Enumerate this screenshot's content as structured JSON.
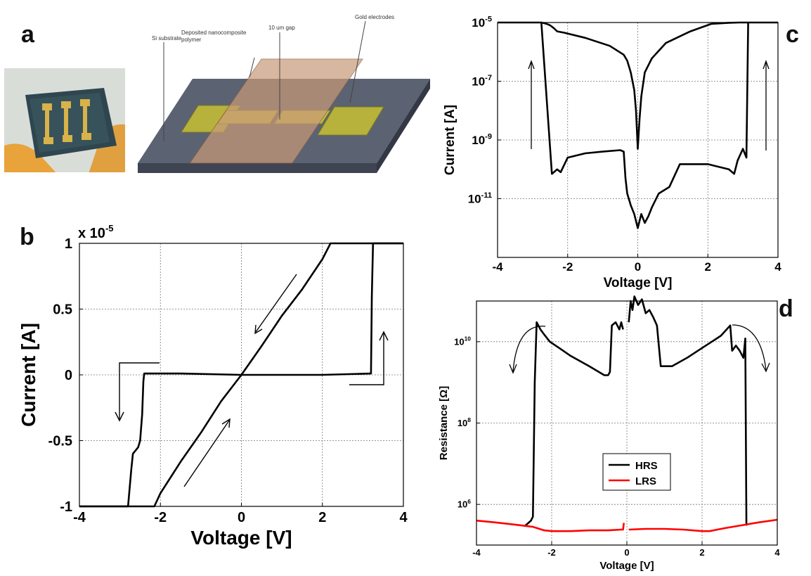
{
  "panels": {
    "a": {
      "letter": "a",
      "labels": {
        "substrate": "Si substrate",
        "polymer_line1": "Deposited nanocomposite",
        "polymer_line2": "polymer",
        "gap": "10 um gap",
        "electrodes": "Gold electrodes"
      },
      "colors": {
        "substrate": "#5b6272",
        "electrode": "#b7b23c",
        "polymer": "#c89a78"
      }
    },
    "b": {
      "letter": "b"
    },
    "c": {
      "letter": "c"
    },
    "d": {
      "letter": "d"
    }
  },
  "chart_data": [
    {
      "panel": "b",
      "type": "line",
      "xlabel": "Voltage [V]",
      "ylabel": "Current [A]",
      "multiplier_label": "x 10",
      "multiplier_exp": "-5",
      "xlim": [
        -4,
        4
      ],
      "ylim": [
        -1,
        1
      ],
      "xticks": [
        -4,
        -2,
        0,
        2,
        4
      ],
      "yticks": [
        -1,
        -0.5,
        0,
        0.5,
        1
      ],
      "ytick_labels": [
        "-1",
        "-0.5",
        "0",
        "0.5",
        "1"
      ],
      "grid": true,
      "series": [
        {
          "color": "#000000",
          "x": [
            -4,
            -2.8,
            -2.72,
            -2.68,
            -2.55,
            -2.5,
            -2.45,
            -2.42,
            -2.4,
            -1.5,
            0,
            1,
            2,
            3.2,
            3.22,
            3.25,
            4
          ],
          "y": [
            -1,
            -1,
            -0.72,
            -0.6,
            -0.55,
            -0.5,
            -0.3,
            -0.05,
            0.01,
            0.01,
            0,
            0,
            0,
            0.01,
            0.6,
            1,
            1
          ]
        },
        {
          "color": "#000000",
          "x": [
            -4,
            -2.15,
            -2,
            -1.5,
            -1,
            -0.5,
            0,
            0.5,
            1,
            1.5,
            2,
            2.2,
            4
          ],
          "y": [
            -1,
            -1,
            -0.9,
            -0.66,
            -0.44,
            -0.2,
            0,
            0.22,
            0.45,
            0.65,
            0.88,
            1,
            1
          ]
        }
      ]
    },
    {
      "panel": "c",
      "type": "line",
      "xlabel": "Voltage [V]",
      "ylabel": "Current [A]",
      "yscale": "log",
      "xlim": [
        -4,
        4
      ],
      "ylim": [
        1e-13,
        1e-05
      ],
      "xticks": [
        -4,
        -2,
        0,
        2,
        4
      ],
      "ytick_values": [
        1e-05,
        1e-07,
        1e-09,
        1e-11
      ],
      "ytick_exps": [
        "-5",
        "-7",
        "-9",
        "-11"
      ],
      "grid": true,
      "series": [
        {
          "color": "#000000",
          "x": [
            -4,
            -2.75,
            -2.6,
            -2.5,
            -2.4,
            -2.3,
            -2.1,
            -1.5,
            -0.8,
            -0.4,
            -0.3,
            -0.2,
            -0.1,
            -0.05,
            0,
            0.05,
            0.1,
            0.2,
            0.4,
            0.8,
            1.5,
            2.1,
            2.6,
            2.9,
            3.1,
            3.15,
            3.2,
            4
          ],
          "y": [
            1e-05,
            1e-05,
            9e-06,
            8e-06,
            6.5e-06,
            5e-06,
            4.5e-06,
            3e-06,
            1.6e-06,
            8e-07,
            5e-07,
            2e-07,
            5e-08,
            1e-08,
            5e-10,
            5e-09,
            3e-08,
            2e-07,
            6e-07,
            2e-06,
            5e-06,
            9e-06,
            9.8e-06,
            1e-05,
            1e-05,
            1e-05,
            1e-05,
            1e-05
          ]
        },
        {
          "color": "#000000",
          "x": [
            -2.75,
            -2.45,
            -2.3,
            -2.2,
            -2,
            -1.5,
            -1,
            -0.5,
            -0.4,
            -0.35,
            -0.3,
            -0.2,
            -0.1,
            0,
            0.1,
            0.2,
            0.3,
            0.4,
            0.6,
            0.9,
            1.2,
            2,
            2.6,
            2.75,
            2.85,
            3.0,
            3.1,
            3.15
          ],
          "y": [
            1e-05,
            7e-11,
            1e-10,
            8e-11,
            2.5e-10,
            3.5e-10,
            4e-10,
            4.5e-10,
            4e-10,
            5e-11,
            1.5e-11,
            6e-12,
            3e-12,
            1e-12,
            3e-12,
            1.5e-12,
            2.5e-12,
            5e-12,
            1.5e-11,
            2.5e-11,
            1.5e-10,
            1.5e-10,
            1e-10,
            7e-11,
            2e-10,
            5e-10,
            2.5e-10,
            1e-05
          ]
        }
      ]
    },
    {
      "panel": "d",
      "type": "line",
      "xlabel": "Voltage [V]",
      "ylabel": "Resistance [Ω]",
      "yscale": "log",
      "xlim": [
        -4,
        4
      ],
      "ylim": [
        100000.0,
        100000000000.0
      ],
      "xticks": [
        -4,
        -2,
        0,
        2,
        4
      ],
      "ytick_values": [
        10000000000.0,
        100000000.0,
        1000000.0
      ],
      "ytick_exps": [
        "10",
        "8",
        "6"
      ],
      "grid": true,
      "legend": {
        "position": "center-bottom",
        "entries": [
          "HRS",
          "LRS"
        ]
      },
      "series": [
        {
          "name": "HRS",
          "color": "#000000",
          "segments": [
            {
              "x": [
                -2.7,
                -2.55,
                -2.5,
                -2.45,
                -2.4,
                -2.3,
                -2.2,
                -2.05,
                -1.8,
                -1.5,
                -1.0,
                -0.6,
                -0.5,
                -0.45,
                -0.4,
                -0.3,
                -0.2,
                -0.15,
                -0.1
              ],
              "y": [
                300000.0,
                400000.0,
                500000.0,
                1000000000.0,
                30000000000.0,
                20000000000.0,
                15000000000.0,
                10000000000.0,
                7000000000.0,
                4500000000.0,
                2500000000.0,
                1500000000.0,
                1500000000.0,
                1800000000.0,
                25000000000.0,
                30000000000.0,
                20000000000.0,
                30000000000.0,
                20000000000.0
              ]
            },
            {
              "x": [
                0.05,
                0.1,
                0.15,
                0.2,
                0.3,
                0.4,
                0.5,
                0.6,
                0.7,
                0.8,
                0.9,
                1.2,
                1.6,
                2.0,
                2.5,
                2.75,
                2.8,
                2.9,
                3.0,
                3.1,
                3.15,
                3.18
              ],
              "y": [
                30000000000.0,
                100000000000.0,
                60000000000.0,
                130000000000.0,
                80000000000.0,
                110000000000.0,
                50000000000.0,
                60000000000.0,
                40000000000.0,
                25000000000.0,
                2500000000.0,
                2500000000.0,
                4000000000.0,
                7000000000.0,
                14000000000.0,
                25000000000.0,
                6000000000.0,
                8000000000.0,
                6000000000.0,
                4000000000.0,
                12000000000.0,
                300000.0
              ]
            }
          ]
        },
        {
          "name": "LRS",
          "color": "#ff0000",
          "segments": [
            {
              "x": [
                -4,
                -3.5,
                -3.0,
                -2.5,
                -2.2,
                -2.0,
                -1.5,
                -1.0,
                -0.5,
                -0.15,
                -0.1,
                -0.08
              ],
              "y": [
                400000.0,
                360000.0,
                320000.0,
                280000.0,
                230000.0,
                220000.0,
                220000.0,
                230000.0,
                230000.0,
                240000.0,
                240000.0,
                350000.0
              ]
            },
            {
              "x": [
                0.05,
                0.5,
                1.0,
                1.5,
                2.0,
                2.2,
                2.6,
                3.0,
                3.5,
                4.0
              ],
              "y": [
                240000.0,
                250000.0,
                250000.0,
                240000.0,
                220000.0,
                220000.0,
                260000.0,
                300000.0,
                360000.0,
                420000.0
              ]
            }
          ]
        }
      ]
    }
  ]
}
